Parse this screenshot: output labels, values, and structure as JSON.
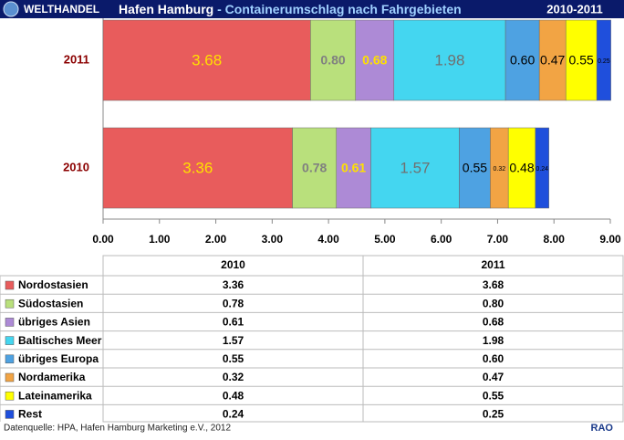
{
  "header": {
    "section": "WELTHANDEL",
    "title": "Hafen Hamburg",
    "subtitle": "- Containerumschlag nach Fahrgebieten",
    "period": "2010-2011"
  },
  "footer": {
    "source": "Datenquelle: HPA, Hafen Hamburg Marketing e.V., 2012",
    "brand": "RAO"
  },
  "chart_data": {
    "type": "stacked-hbar",
    "categories": [
      "2010",
      "2011"
    ],
    "series": [
      {
        "name": "Nordostasien",
        "color": "#e85c5c",
        "label_color": "#ffe000",
        "values": [
          3.36,
          3.68
        ],
        "value_labels": [
          "3.36",
          "3.68"
        ]
      },
      {
        "name": "Südostasien",
        "color": "#b9e07c",
        "label_color": "#808080",
        "values": [
          0.78,
          0.8
        ],
        "value_labels": [
          "0.78",
          "0.80"
        ]
      },
      {
        "name": "übriges Asien",
        "color": "#ad8ad6",
        "label_color": "#ffe000",
        "values": [
          0.61,
          0.68
        ],
        "value_labels": [
          "0.61",
          "0.68"
        ]
      },
      {
        "name": "Baltisches Meer",
        "color": "#44d6f0",
        "label_color": "#707070",
        "values": [
          1.57,
          1.98
        ],
        "value_labels": [
          "1.57",
          "1.98"
        ]
      },
      {
        "name": "übriges Europa",
        "color": "#4ea2e2",
        "label_color": "#000000",
        "values": [
          0.55,
          0.6
        ],
        "value_labels": [
          "0.55",
          "0.60"
        ]
      },
      {
        "name": "Nordamerika",
        "color": "#f2a444",
        "label_color": "#000000",
        "values": [
          0.32,
          0.47
        ],
        "value_labels": [
          "0.32",
          "0.47"
        ]
      },
      {
        "name": "Lateinamerika",
        "color": "#ffff00",
        "label_color": "#000000",
        "values": [
          0.48,
          0.55
        ],
        "value_labels": [
          "0.48",
          "0.55"
        ]
      },
      {
        "name": "Rest",
        "color": "#1f4fdc",
        "label_color": "#000000",
        "values": [
          0.24,
          0.25
        ],
        "value_labels": [
          "0.24",
          "0.25"
        ]
      }
    ],
    "xlim": [
      0,
      9
    ],
    "xticks": [
      {
        "value": 0,
        "label": "0.00"
      },
      {
        "value": 1,
        "label": "1.00"
      },
      {
        "value": 2,
        "label": "2.00"
      },
      {
        "value": 3,
        "label": "3.00"
      },
      {
        "value": 4,
        "label": "4.00"
      },
      {
        "value": 5,
        "label": "5.00"
      },
      {
        "value": 6,
        "label": "6.00"
      },
      {
        "value": 7,
        "label": "7.00"
      },
      {
        "value": 8,
        "label": "8.00"
      },
      {
        "value": 9,
        "label": "9.00"
      }
    ]
  }
}
